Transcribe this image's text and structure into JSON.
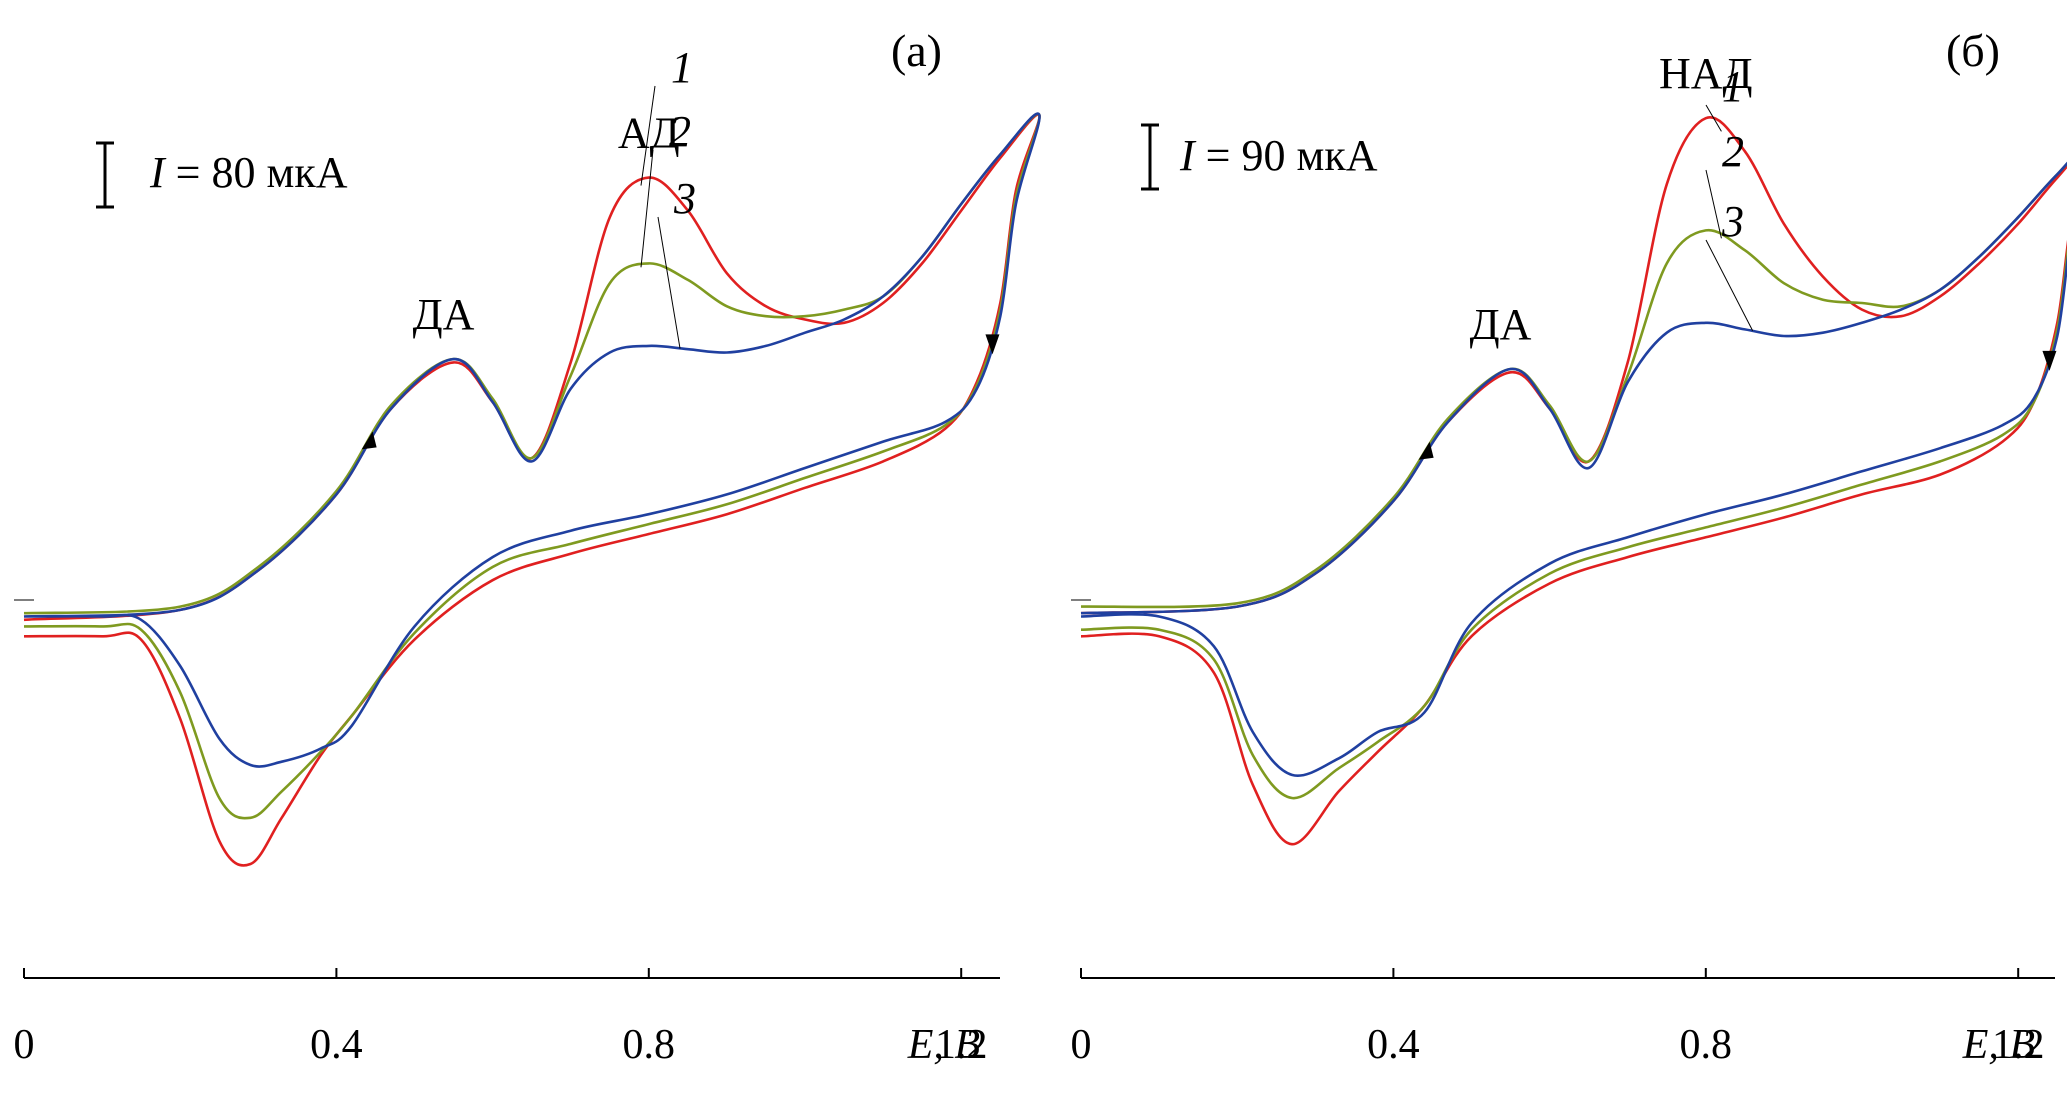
{
  "chart_data": [
    {
      "type": "line",
      "panel_label": "(a)",
      "scale_bar": "I = 80 мкА",
      "xlabel": "E, В",
      "xlim": [
        0,
        1.3
      ],
      "xticks": [
        "0",
        "0.4",
        "0.8",
        "1.2"
      ],
      "peak_labels": [
        {
          "text": "ДА",
          "x": 0.55
        },
        {
          "text": "АД",
          "x": 0.8
        }
      ],
      "series": [
        {
          "name": "1",
          "color": "#e02020",
          "forward": [
            [
              0.0,
              -30
            ],
            [
              0.2,
              -15
            ],
            [
              0.3,
              45
            ],
            [
              0.4,
              160
            ],
            [
              0.47,
              290
            ],
            [
              0.55,
              360
            ],
            [
              0.6,
              300
            ],
            [
              0.65,
              215
            ],
            [
              0.7,
              360
            ],
            [
              0.75,
              580
            ],
            [
              0.8,
              640
            ],
            [
              0.85,
              590
            ],
            [
              0.9,
              495
            ],
            [
              0.95,
              445
            ],
            [
              1.0,
              425
            ],
            [
              1.05,
              420
            ],
            [
              1.1,
              450
            ],
            [
              1.15,
              510
            ],
            [
              1.2,
              590
            ],
            [
              1.25,
              670
            ],
            [
              1.3,
              735
            ]
          ],
          "reverse": [
            [
              1.3,
              735
            ],
            [
              1.27,
              620
            ],
            [
              1.25,
              450
            ],
            [
              1.22,
              330
            ],
            [
              1.18,
              260
            ],
            [
              1.1,
              210
            ],
            [
              1.0,
              170
            ],
            [
              0.9,
              130
            ],
            [
              0.8,
              100
            ],
            [
              0.7,
              70
            ],
            [
              0.6,
              30
            ],
            [
              0.5,
              -60
            ],
            [
              0.42,
              -175
            ],
            [
              0.38,
              -235
            ],
            [
              0.33,
              -330
            ],
            [
              0.29,
              -400
            ],
            [
              0.25,
              -365
            ],
            [
              0.2,
              -180
            ],
            [
              0.15,
              -60
            ],
            [
              0.1,
              -55
            ],
            [
              0.0,
              -55
            ]
          ]
        },
        {
          "name": "2",
          "color": "#7f9a20",
          "forward": [
            [
              0.0,
              -20
            ],
            [
              0.2,
              -10
            ],
            [
              0.3,
              50
            ],
            [
              0.4,
              165
            ],
            [
              0.47,
              295
            ],
            [
              0.55,
              365
            ],
            [
              0.6,
              305
            ],
            [
              0.65,
              215
            ],
            [
              0.7,
              340
            ],
            [
              0.75,
              480
            ],
            [
              0.8,
              510
            ],
            [
              0.85,
              485
            ],
            [
              0.9,
              445
            ],
            [
              0.95,
              430
            ],
            [
              1.0,
              430
            ],
            [
              1.05,
              440
            ],
            [
              1.1,
              460
            ],
            [
              1.15,
              520
            ],
            [
              1.2,
              600
            ],
            [
              1.25,
              675
            ],
            [
              1.3,
              735
            ]
          ],
          "reverse": [
            [
              1.3,
              735
            ],
            [
              1.27,
              610
            ],
            [
              1.25,
              440
            ],
            [
              1.22,
              325
            ],
            [
              1.18,
              265
            ],
            [
              1.1,
              225
            ],
            [
              1.0,
              185
            ],
            [
              0.9,
              145
            ],
            [
              0.8,
              115
            ],
            [
              0.7,
              85
            ],
            [
              0.6,
              50
            ],
            [
              0.5,
              -50
            ],
            [
              0.42,
              -175
            ],
            [
              0.38,
              -230
            ],
            [
              0.33,
              -290
            ],
            [
              0.29,
              -330
            ],
            [
              0.25,
              -300
            ],
            [
              0.2,
              -140
            ],
            [
              0.15,
              -45
            ],
            [
              0.1,
              -40
            ],
            [
              0.0,
              -40
            ]
          ]
        },
        {
          "name": "3",
          "color": "#2040a0",
          "forward": [
            [
              0.0,
              -25
            ],
            [
              0.2,
              -15
            ],
            [
              0.3,
              45
            ],
            [
              0.4,
              160
            ],
            [
              0.47,
              290
            ],
            [
              0.55,
              365
            ],
            [
              0.6,
              300
            ],
            [
              0.65,
              210
            ],
            [
              0.7,
              320
            ],
            [
              0.75,
              375
            ],
            [
              0.8,
              385
            ],
            [
              0.85,
              380
            ],
            [
              0.9,
              375
            ],
            [
              0.95,
              385
            ],
            [
              1.0,
              405
            ],
            [
              1.05,
              425
            ],
            [
              1.1,
              460
            ],
            [
              1.15,
              520
            ],
            [
              1.2,
              600
            ],
            [
              1.25,
              675
            ],
            [
              1.3,
              735
            ]
          ],
          "reverse": [
            [
              1.3,
              735
            ],
            [
              1.27,
              600
            ],
            [
              1.25,
              430
            ],
            [
              1.22,
              320
            ],
            [
              1.18,
              270
            ],
            [
              1.1,
              240
            ],
            [
              1.0,
              200
            ],
            [
              0.9,
              160
            ],
            [
              0.8,
              130
            ],
            [
              0.7,
              105
            ],
            [
              0.6,
              65
            ],
            [
              0.5,
              -40
            ],
            [
              0.42,
              -190
            ],
            [
              0.38,
              -225
            ],
            [
              0.33,
              -245
            ],
            [
              0.29,
              -250
            ],
            [
              0.25,
              -210
            ],
            [
              0.2,
              -100
            ],
            [
              0.15,
              -30
            ],
            [
              0.1,
              -25
            ],
            [
              0.0,
              -25
            ]
          ]
        }
      ]
    },
    {
      "type": "line",
      "panel_label": "(б)",
      "scale_bar": "I = 90 мкА",
      "xlabel": "E, В",
      "xlim": [
        0,
        1.3
      ],
      "xticks": [
        "0",
        "0.4",
        "0.8",
        "1.2"
      ],
      "peak_labels": [
        {
          "text": "ДА",
          "x": 0.55
        },
        {
          "text": "НАД",
          "x": 0.8
        }
      ],
      "series": [
        {
          "name": "1",
          "color": "#e02020",
          "forward": [
            [
              0.0,
              -20
            ],
            [
              0.2,
              -10
            ],
            [
              0.3,
              40
            ],
            [
              0.4,
              150
            ],
            [
              0.47,
              270
            ],
            [
              0.55,
              345
            ],
            [
              0.6,
              290
            ],
            [
              0.65,
              210
            ],
            [
              0.7,
              360
            ],
            [
              0.75,
              630
            ],
            [
              0.8,
              730
            ],
            [
              0.85,
              680
            ],
            [
              0.9,
              570
            ],
            [
              0.95,
              490
            ],
            [
              1.0,
              440
            ],
            [
              1.05,
              430
            ],
            [
              1.1,
              460
            ],
            [
              1.15,
              510
            ],
            [
              1.2,
              570
            ],
            [
              1.25,
              640
            ],
            [
              1.3,
              700
            ]
          ],
          "reverse": [
            [
              1.3,
              700
            ],
            [
              1.27,
              590
            ],
            [
              1.25,
              420
            ],
            [
              1.22,
              300
            ],
            [
              1.18,
              240
            ],
            [
              1.1,
              190
            ],
            [
              1.0,
              160
            ],
            [
              0.9,
              125
            ],
            [
              0.8,
              95
            ],
            [
              0.7,
              65
            ],
            [
              0.6,
              25
            ],
            [
              0.5,
              -55
            ],
            [
              0.44,
              -160
            ],
            [
              0.38,
              -230
            ],
            [
              0.33,
              -290
            ],
            [
              0.27,
              -370
            ],
            [
              0.22,
              -280
            ],
            [
              0.17,
              -110
            ],
            [
              0.1,
              -55
            ],
            [
              0.0,
              -55
            ]
          ]
        },
        {
          "name": "2",
          "color": "#7f9a20",
          "forward": [
            [
              0.0,
              -10
            ],
            [
              0.2,
              -5
            ],
            [
              0.3,
              45
            ],
            [
              0.4,
              155
            ],
            [
              0.47,
              275
            ],
            [
              0.55,
              350
            ],
            [
              0.6,
              295
            ],
            [
              0.65,
              210
            ],
            [
              0.7,
              340
            ],
            [
              0.75,
              510
            ],
            [
              0.8,
              560
            ],
            [
              0.85,
              530
            ],
            [
              0.9,
              480
            ],
            [
              0.95,
              455
            ],
            [
              1.0,
              450
            ],
            [
              1.05,
              445
            ],
            [
              1.1,
              470
            ],
            [
              1.15,
              520
            ],
            [
              1.2,
              580
            ],
            [
              1.25,
              645
            ],
            [
              1.3,
              700
            ]
          ],
          "reverse": [
            [
              1.3,
              700
            ],
            [
              1.27,
              580
            ],
            [
              1.25,
              410
            ],
            [
              1.22,
              300
            ],
            [
              1.18,
              250
            ],
            [
              1.1,
              210
            ],
            [
              1.0,
              175
            ],
            [
              0.9,
              140
            ],
            [
              0.8,
              110
            ],
            [
              0.7,
              80
            ],
            [
              0.6,
              40
            ],
            [
              0.5,
              -45
            ],
            [
              0.44,
              -160
            ],
            [
              0.38,
              -215
            ],
            [
              0.33,
              -255
            ],
            [
              0.27,
              -300
            ],
            [
              0.22,
              -235
            ],
            [
              0.17,
              -90
            ],
            [
              0.1,
              -45
            ],
            [
              0.0,
              -45
            ]
          ]
        },
        {
          "name": "3",
          "color": "#2040a0",
          "forward": [
            [
              0.0,
              -20
            ],
            [
              0.2,
              -10
            ],
            [
              0.3,
              40
            ],
            [
              0.4,
              150
            ],
            [
              0.47,
              270
            ],
            [
              0.55,
              350
            ],
            [
              0.6,
              290
            ],
            [
              0.65,
              200
            ],
            [
              0.7,
              330
            ],
            [
              0.75,
              405
            ],
            [
              0.8,
              420
            ],
            [
              0.85,
              410
            ],
            [
              0.9,
              400
            ],
            [
              0.95,
              405
            ],
            [
              1.0,
              420
            ],
            [
              1.05,
              440
            ],
            [
              1.1,
              470
            ],
            [
              1.15,
              520
            ],
            [
              1.2,
              580
            ],
            [
              1.25,
              645
            ],
            [
              1.3,
              700
            ]
          ],
          "reverse": [
            [
              1.3,
              700
            ],
            [
              1.27,
              570
            ],
            [
              1.25,
              400
            ],
            [
              1.22,
              305
            ],
            [
              1.18,
              265
            ],
            [
              1.1,
              230
            ],
            [
              1.0,
              195
            ],
            [
              0.9,
              160
            ],
            [
              0.8,
              130
            ],
            [
              0.7,
              95
            ],
            [
              0.6,
              55
            ],
            [
              0.5,
              -35
            ],
            [
              0.44,
              -170
            ],
            [
              0.38,
              -200
            ],
            [
              0.33,
              -240
            ],
            [
              0.27,
              -265
            ],
            [
              0.22,
              -200
            ],
            [
              0.17,
              -70
            ],
            [
              0.1,
              -25
            ],
            [
              0.0,
              -25
            ]
          ]
        }
      ]
    }
  ]
}
